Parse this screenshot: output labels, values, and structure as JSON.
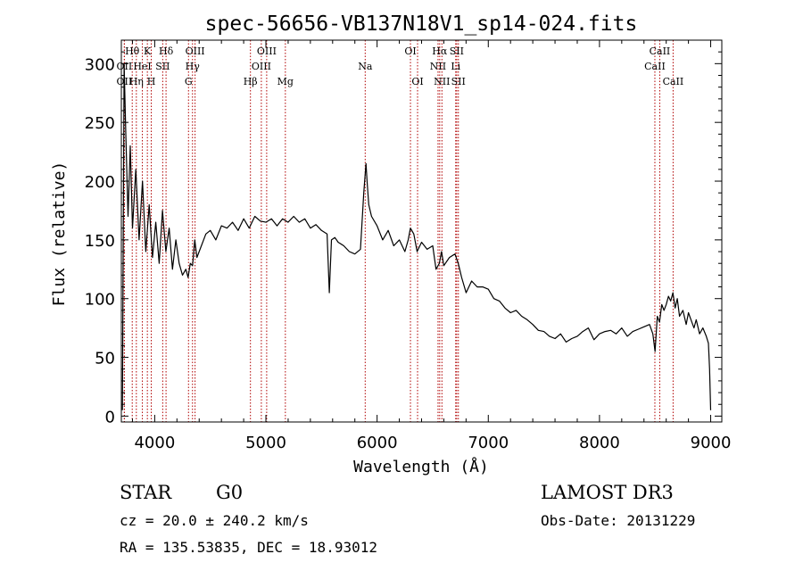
{
  "chart_data": {
    "type": "line",
    "title": "spec-56656-VB137N18V1_sp14-024.fits",
    "xlabel": "Wavelength (Å)",
    "ylabel": "Flux (relative)",
    "xlim": [
      3700,
      9100
    ],
    "ylim": [
      -5,
      320
    ],
    "xticks": [
      4000,
      5000,
      6000,
      7000,
      8000,
      9000
    ],
    "yticks": [
      0,
      50,
      100,
      150,
      200,
      250,
      300
    ],
    "grid": false,
    "line_color": "#000000",
    "marker_color": "#b00000",
    "series": [
      {
        "x": [
          3710,
          3725,
          3740,
          3760,
          3780,
          3800,
          3830,
          3860,
          3890,
          3920,
          3950,
          3980,
          4010,
          4040,
          4070,
          4100,
          4130,
          4160,
          4190,
          4220,
          4250,
          4280,
          4300,
          4320,
          4340,
          4360,
          4380,
          4420,
          4460,
          4500,
          4550,
          4600,
          4650,
          4700,
          4750,
          4800,
          4850,
          4900,
          4950,
          5000,
          5050,
          5100,
          5150,
          5200,
          5250,
          5300,
          5350,
          5400,
          5450,
          5500,
          5550,
          5570,
          5590,
          5620,
          5650,
          5700,
          5750,
          5800,
          5850,
          5880,
          5900,
          5910,
          5925,
          5950,
          6000,
          6050,
          6100,
          6150,
          6200,
          6250,
          6280,
          6300,
          6330,
          6360,
          6400,
          6450,
          6500,
          6530,
          6560,
          6580,
          6600,
          6650,
          6700,
          6730,
          6760,
          6800,
          6850,
          6900,
          6950,
          7000,
          7050,
          7100,
          7150,
          7200,
          7250,
          7300,
          7350,
          7400,
          7450,
          7500,
          7550,
          7600,
          7650,
          7700,
          7750,
          7800,
          7850,
          7900,
          7950,
          8000,
          8050,
          8100,
          8150,
          8200,
          8250,
          8300,
          8350,
          8400,
          8450,
          8480,
          8500,
          8520,
          8540,
          8560,
          8580,
          8600,
          8620,
          8640,
          8660,
          8680,
          8700,
          8720,
          8750,
          8780,
          8800,
          8830,
          8850,
          8870,
          8900,
          8930,
          8960,
          8980,
          8990,
          9000
        ],
        "y": [
          5,
          300,
          240,
          170,
          230,
          160,
          210,
          150,
          200,
          140,
          180,
          135,
          165,
          130,
          175,
          140,
          160,
          125,
          150,
          130,
          120,
          125,
          118,
          130,
          128,
          150,
          135,
          145,
          155,
          158,
          150,
          162,
          160,
          165,
          158,
          168,
          160,
          170,
          166,
          165,
          168,
          162,
          168,
          165,
          170,
          165,
          168,
          160,
          163,
          158,
          155,
          105,
          150,
          152,
          148,
          145,
          140,
          138,
          142,
          190,
          215,
          200,
          180,
          170,
          162,
          150,
          158,
          145,
          150,
          140,
          150,
          160,
          155,
          140,
          148,
          142,
          145,
          125,
          130,
          140,
          128,
          135,
          138,
          130,
          118,
          105,
          115,
          110,
          110,
          108,
          100,
          98,
          92,
          88,
          90,
          85,
          82,
          78,
          73,
          72,
          68,
          66,
          70,
          63,
          66,
          68,
          72,
          75,
          65,
          70,
          72,
          73,
          70,
          75,
          68,
          72,
          74,
          76,
          78,
          70,
          55,
          85,
          80,
          95,
          90,
          95,
          102,
          98,
          105,
          92,
          100,
          85,
          90,
          78,
          88,
          80,
          75,
          82,
          70,
          75,
          68,
          62,
          40,
          5
        ]
      }
    ],
    "lines": [
      {
        "label": "Hθ",
        "x": 3798,
        "row": 0
      },
      {
        "label": "OII",
        "x": 3727,
        "row": 1
      },
      {
        "label": "OII",
        "x": 3727,
        "row": 2
      },
      {
        "label": "K",
        "x": 3934,
        "row": 0
      },
      {
        "label": "HeI",
        "x": 3889,
        "row": 1
      },
      {
        "label": "Hη",
        "x": 3835,
        "row": 2
      },
      {
        "label": "Hδ",
        "x": 4102,
        "row": 0
      },
      {
        "label": "SII",
        "x": 4072,
        "row": 1
      },
      {
        "label": "H",
        "x": 3969,
        "row": 2
      },
      {
        "label": "OIII",
        "x": 4363,
        "row": 0
      },
      {
        "label": "Hγ",
        "x": 4340,
        "row": 1
      },
      {
        "label": "G",
        "x": 4304,
        "row": 2
      },
      {
        "label": "OIII",
        "x": 5007,
        "row": 0
      },
      {
        "label": "OIII",
        "x": 4959,
        "row": 1
      },
      {
        "label": "Hβ",
        "x": 4861,
        "row": 2
      },
      {
        "label": "Mg",
        "x": 5175,
        "row": 2
      },
      {
        "label": "Na",
        "x": 5893,
        "row": 1
      },
      {
        "label": "OI",
        "x": 6300,
        "row": 0
      },
      {
        "label": "OI",
        "x": 6364,
        "row": 2
      },
      {
        "label": "Hα",
        "x": 6563,
        "row": 0
      },
      {
        "label": "SII",
        "x": 6716,
        "row": 0
      },
      {
        "label": "NII",
        "x": 6548,
        "row": 1
      },
      {
        "label": "Li",
        "x": 6707,
        "row": 1
      },
      {
        "label": "NII",
        "x": 6583,
        "row": 2
      },
      {
        "label": "SII",
        "x": 6731,
        "row": 2
      },
      {
        "label": "CaII",
        "x": 8542,
        "row": 0
      },
      {
        "label": "CaII",
        "x": 8498,
        "row": 1
      },
      {
        "label": "CaII",
        "x": 8662,
        "row": 2
      }
    ]
  },
  "info": {
    "object_class": "STAR",
    "subclass": "G0",
    "survey": "LAMOST DR3",
    "redshift_line": "cz = 20.0 ± 240.2 km/s",
    "obs_date_line": "Obs-Date: 20131229",
    "coords_line": "RA = 135.53835, DEC =  18.93012"
  }
}
